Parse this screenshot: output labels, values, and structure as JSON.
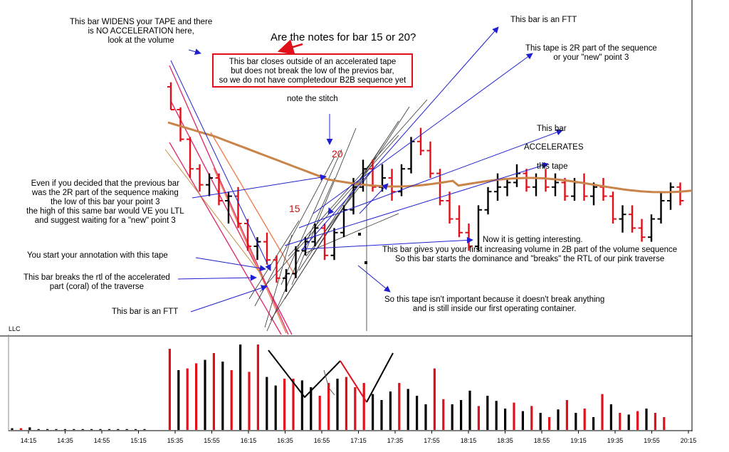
{
  "question": "Are the notes for bar 15 or 20?",
  "boxed_note": "This bar closes outside of an accelerated tape\nbut does not break the low of the previos bar,\nso we do not have completedour B2B sequence yet",
  "annotations": {
    "widens_tape": "This bar WIDENS your TAPE and there\nis NO ACCELERATION here,\nlook at the volume",
    "ftt_top": "This bar is an FTT",
    "tape_2r": "This tape is 2R part of the sequence\nor your \"new\" point 3",
    "stitch": "note the stitch",
    "this_bar": "This bar",
    "accelerates": "ACCELERATES",
    "this_tape": "this tape",
    "even_if": "Even if you decided that the previous bar\nwas the 2R part of the sequence making\nthe low of this bar your point 3\nthe high of this same bar would VE you LTL\nand suggest waiting for a \"new\" point 3",
    "start_annotation": "You start your annotation with this tape",
    "breaks_rtl": "This bar breaks the rtl of the accelerated\npart (coral) of the traverse",
    "ftt_bottom": "This bar is an FTT",
    "interesting": "Now it is getting interesting.",
    "increasing_volume": "This bar gives you your first increasing volume in 2B part of the volume sequence\nSo this bar starts the dominance and \"breaks\" the RTL of our pink traverse",
    "not_important": "So this tape isn't important because it doesn't break anything\nand is still inside our first operating container."
  },
  "bar_labels": {
    "bar15": "15",
    "bar20": "20"
  },
  "volume_panel_label": "LLC",
  "colors": {
    "up": "#000000",
    "down": "#e0101a",
    "ma": "#c9844a",
    "arrow": "#2020d0",
    "pink": "#e03070",
    "coral": "#f08050",
    "box": "#e0101a"
  },
  "chart_data": {
    "type": "bar",
    "subtype": "ohlc-with-volume",
    "x_tick_labels": [
      "14:15",
      "14:35",
      "14:55",
      "15:15",
      "15:35",
      "15:55",
      "16:15",
      "16:35",
      "16:55",
      "17:15",
      "17:35",
      "17:55",
      "18:15",
      "18:35",
      "18:55",
      "19:15",
      "19:35",
      "19:55",
      "20:15"
    ],
    "ylim": [
      0,
      100
    ],
    "price_bars": [
      [
        0,
        90,
        92,
        80,
        80,
        1
      ],
      [
        1,
        80,
        81,
        66,
        67,
        1
      ],
      [
        2,
        67,
        68,
        50,
        54,
        1
      ],
      [
        3,
        54,
        56,
        44,
        47,
        1
      ],
      [
        4,
        47,
        52,
        42,
        50,
        0
      ],
      [
        5,
        50,
        52,
        38,
        40,
        1
      ],
      [
        6,
        40,
        44,
        30,
        42,
        0
      ],
      [
        7,
        42,
        46,
        28,
        30,
        1
      ],
      [
        8,
        30,
        32,
        18,
        20,
        1
      ],
      [
        9,
        20,
        24,
        14,
        22,
        0
      ],
      [
        10,
        22,
        26,
        12,
        14,
        1
      ],
      [
        11,
        14,
        16,
        4,
        6,
        1
      ],
      [
        12,
        6,
        10,
        0,
        8,
        0
      ],
      [
        13,
        8,
        20,
        6,
        18,
        0
      ],
      [
        14,
        18,
        24,
        16,
        22,
        0
      ],
      [
        15,
        22,
        30,
        20,
        28,
        0
      ],
      [
        16,
        28,
        30,
        14,
        16,
        1
      ],
      [
        17,
        16,
        28,
        14,
        26,
        0
      ],
      [
        18,
        26,
        38,
        24,
        36,
        0
      ],
      [
        19,
        36,
        50,
        34,
        46,
        0
      ],
      [
        20,
        46,
        58,
        44,
        54,
        0
      ],
      [
        21,
        54,
        58,
        44,
        46,
        1
      ],
      [
        22,
        46,
        56,
        44,
        50,
        0
      ],
      [
        23,
        50,
        54,
        40,
        44,
        1
      ],
      [
        24,
        44,
        56,
        42,
        54,
        0
      ],
      [
        25,
        54,
        68,
        52,
        66,
        0
      ],
      [
        26,
        66,
        72,
        60,
        62,
        1
      ],
      [
        27,
        62,
        66,
        50,
        52,
        1
      ],
      [
        28,
        52,
        54,
        38,
        40,
        1
      ],
      [
        29,
        40,
        44,
        30,
        32,
        1
      ],
      [
        30,
        32,
        38,
        24,
        26,
        1
      ],
      [
        31,
        26,
        30,
        18,
        20,
        1
      ],
      [
        32,
        20,
        38,
        18,
        36,
        0
      ],
      [
        33,
        36,
        46,
        34,
        44,
        0
      ],
      [
        34,
        44,
        52,
        40,
        46,
        0
      ],
      [
        35,
        46,
        50,
        42,
        48,
        0
      ],
      [
        36,
        48,
        56,
        46,
        52,
        0
      ],
      [
        37,
        52,
        54,
        44,
        46,
        1
      ],
      [
        38,
        46,
        52,
        42,
        50,
        0
      ],
      [
        39,
        50,
        54,
        44,
        46,
        1
      ],
      [
        40,
        46,
        52,
        42,
        48,
        0
      ],
      [
        41,
        48,
        50,
        40,
        42,
        1
      ],
      [
        42,
        42,
        50,
        40,
        48,
        0
      ],
      [
        43,
        48,
        52,
        40,
        42,
        1
      ],
      [
        44,
        42,
        48,
        38,
        46,
        0
      ],
      [
        45,
        46,
        50,
        40,
        42,
        1
      ],
      [
        46,
        42,
        44,
        30,
        32,
        1
      ],
      [
        47,
        32,
        38,
        26,
        34,
        0
      ],
      [
        48,
        34,
        38,
        26,
        28,
        1
      ],
      [
        49,
        28,
        32,
        22,
        24,
        1
      ],
      [
        50,
        24,
        34,
        22,
        32,
        0
      ],
      [
        51,
        32,
        44,
        30,
        40,
        0
      ],
      [
        52,
        40,
        48,
        36,
        46,
        0
      ],
      [
        53,
        46,
        48,
        38,
        40,
        1
      ]
    ],
    "volume": [
      [
        0,
        2,
        0
      ],
      [
        1,
        2,
        1
      ],
      [
        2,
        3,
        0
      ],
      [
        3,
        1,
        0
      ],
      [
        4,
        1,
        0
      ],
      [
        5,
        1,
        0
      ],
      [
        6,
        1,
        0
      ],
      [
        7,
        1,
        0
      ],
      [
        8,
        1,
        0
      ],
      [
        9,
        1,
        0
      ],
      [
        10,
        1,
        0
      ],
      [
        11,
        1,
        0
      ],
      [
        12,
        1,
        0
      ],
      [
        13,
        1,
        0
      ],
      [
        14,
        1,
        0
      ],
      [
        15,
        1,
        0
      ],
      [
        16,
        95,
        1
      ],
      [
        17,
        70,
        0
      ],
      [
        18,
        72,
        1
      ],
      [
        19,
        78,
        1
      ],
      [
        20,
        82,
        0
      ],
      [
        21,
        90,
        1
      ],
      [
        22,
        80,
        0
      ],
      [
        23,
        70,
        1
      ],
      [
        24,
        100,
        0
      ],
      [
        25,
        68,
        1
      ],
      [
        26,
        100,
        1
      ],
      [
        27,
        62,
        0
      ],
      [
        28,
        52,
        0
      ],
      [
        29,
        60,
        1
      ],
      [
        30,
        60,
        1
      ],
      [
        31,
        58,
        0
      ],
      [
        32,
        50,
        0
      ],
      [
        33,
        40,
        1
      ],
      [
        34,
        55,
        1
      ],
      [
        35,
        60,
        0
      ],
      [
        36,
        62,
        1
      ],
      [
        37,
        50,
        1
      ],
      [
        38,
        55,
        1
      ],
      [
        39,
        42,
        0
      ],
      [
        40,
        35,
        0
      ],
      [
        41,
        45,
        0
      ],
      [
        42,
        55,
        1
      ],
      [
        43,
        48,
        0
      ],
      [
        44,
        40,
        0
      ],
      [
        45,
        30,
        0
      ],
      [
        46,
        72,
        1
      ],
      [
        47,
        36,
        1
      ],
      [
        48,
        30,
        0
      ],
      [
        49,
        35,
        0
      ],
      [
        50,
        46,
        0
      ],
      [
        51,
        28,
        1
      ],
      [
        52,
        40,
        0
      ],
      [
        53,
        34,
        0
      ],
      [
        54,
        25,
        0
      ],
      [
        55,
        32,
        1
      ],
      [
        56,
        22,
        0
      ],
      [
        57,
        28,
        1
      ],
      [
        58,
        20,
        0
      ],
      [
        59,
        15,
        1
      ],
      [
        60,
        24,
        0
      ],
      [
        61,
        35,
        1
      ],
      [
        62,
        20,
        0
      ],
      [
        63,
        25,
        1
      ],
      [
        64,
        15,
        0
      ],
      [
        65,
        42,
        1
      ],
      [
        66,
        30,
        0
      ],
      [
        67,
        20,
        1
      ],
      [
        68,
        18,
        0
      ],
      [
        69,
        22,
        1
      ],
      [
        70,
        25,
        0
      ],
      [
        71,
        20,
        1
      ],
      [
        72,
        15,
        1
      ]
    ]
  }
}
